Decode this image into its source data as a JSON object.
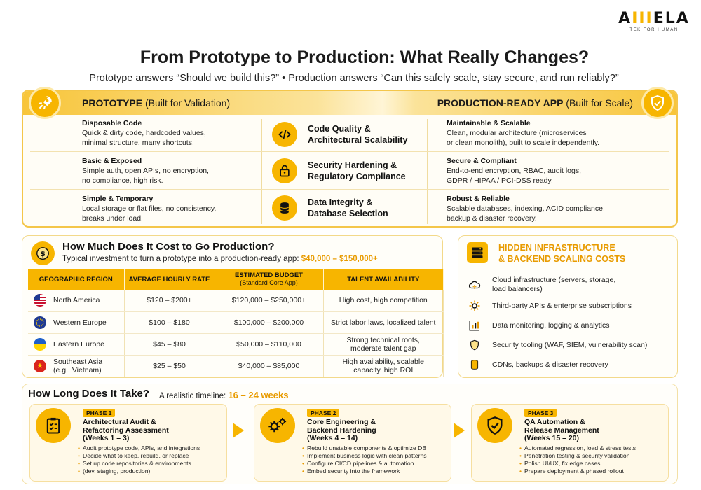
{
  "brand": {
    "logo_left": "A",
    "logo_mid": "III",
    "logo_right": "ELA",
    "tagline": "TEK FOR HUMAN"
  },
  "title": "From Prototype to Production: What Really Changes?",
  "subtitle": "Prototype answers “Should we build this?” • Production answers “Can this safely scale, stay secure, and run reliably?”",
  "compare": {
    "left_header": {
      "bold": "PROTOTYPE",
      "rest": " (Built for Validation)"
    },
    "right_header": {
      "bold": "PRODUCTION-READY APP",
      "rest": " (Built for Scale)"
    },
    "rows": [
      {
        "left_title": "Disposable Code",
        "left_desc_1": "Quick & dirty code, hardcoded values,",
        "left_desc_2": "minimal structure, many shortcuts.",
        "mid_1": "Code Quality &",
        "mid_2": "Architectural Scalability",
        "right_title": "Maintainable & Scalable",
        "right_desc_1": "Clean, modular architecture (microservices",
        "right_desc_2": "or clean monolith), built to scale independently."
      },
      {
        "left_title": "Basic & Exposed",
        "left_desc_1": "Simple auth, open APIs, no encryption,",
        "left_desc_2": "no compliance, high risk.",
        "mid_1": "Security Hardening &",
        "mid_2": "Regulatory Compliance",
        "right_title": "Secure & Compliant",
        "right_desc_1": "End-to-end encryption, RBAC, audit logs,",
        "right_desc_2": "GDPR / HIPAA / PCI-DSS ready."
      },
      {
        "left_title": "Simple & Temporary",
        "left_desc_1": "Local storage or flat files, no consistency,",
        "left_desc_2": "breaks under load.",
        "mid_1": "Data Integrity &",
        "mid_2": "Database Selection",
        "right_title": "Robust & Reliable",
        "right_desc_1": "Scalable databases, indexing, ACID compliance,",
        "right_desc_2": "backup & disaster recovery."
      }
    ]
  },
  "cost": {
    "title": "How Much Does It Cost to Go Production?",
    "sub_prefix": "Typical investment to turn a prototype into a production-ready app: ",
    "sub_highlight": "$40,000 – $150,000+",
    "headers": {
      "region": "GEOGRAPHIC REGION",
      "rate": "AVERAGE HOURLY RATE",
      "budget": "ESTIMATED BUDGET",
      "budget_sub": "(Standard Core App)",
      "talent": "TALENT AVAILABILITY"
    },
    "rows": [
      {
        "region": "North America",
        "region_2": "",
        "rate": "$120 – $200+",
        "budget": "$120,000 – $250,000+",
        "talent_1": "High cost, high competition",
        "talent_2": "",
        "talent_3": ""
      },
      {
        "region": "Western Europe",
        "region_2": "",
        "rate": "$100 – $180",
        "budget": "$100,000 – $200,000",
        "talent_1": "Strict labor laws, localized talent",
        "talent_2": "",
        "talent_3": ""
      },
      {
        "region": "Eastern Europe",
        "region_2": "",
        "rate": "$45 – $80",
        "budget": "$50,000 – $110,000",
        "talent_1": "Strong technical roots,",
        "talent_2": "moderate talent gap",
        "talent_3": ""
      },
      {
        "region": "Southeast Asia",
        "region_2": "(e.g., Vietnam)",
        "rate": "$25 – $50",
        "budget": "$40,000 – $85,000",
        "talent_1": "High availability, scalable",
        "talent_2": "capacity, high ROI",
        "talent_3": ""
      }
    ]
  },
  "infra": {
    "title_1": "HIDDEN INFRASTRUCTURE",
    "title_2": "& BACKEND SCALING COSTS",
    "items": [
      {
        "icon": "cloud-icon",
        "line_1": "Cloud infrastructure (servers, storage,",
        "line_2": "load balancers)"
      },
      {
        "icon": "gear-icon",
        "line_1": "Third-party APIs & enterprise subscriptions",
        "line_2": ""
      },
      {
        "icon": "chart-icon",
        "line_1": "Data monitoring, logging & analytics",
        "line_2": ""
      },
      {
        "icon": "shield-icon",
        "line_1": "Security tooling (WAF, SIEM, vulnerability scan)",
        "line_2": ""
      },
      {
        "icon": "database-icon",
        "line_1": "CDNs, backups & disaster recovery",
        "line_2": ""
      }
    ]
  },
  "timeline": {
    "title": "How Long Does It Take?",
    "sub_prefix": "A realistic timeline: ",
    "sub_highlight": "16 – 24 weeks",
    "phases": [
      {
        "tag": "PHASE 1",
        "name_1": "Architectural Audit &",
        "name_2": "Refactoring Assessment",
        "weeks": "(Weeks 1 – 3)",
        "items": [
          "Audit prototype code, APIs, and integrations",
          "Decide what to keep, rebuild, or replace",
          "Set up code repositories & environments",
          "(dev, staging, production)"
        ]
      },
      {
        "tag": "PHASE 2",
        "name_1": "Core Engineering &",
        "name_2": "Backend Hardening",
        "weeks": "(Weeks 4 – 14)",
        "items": [
          "Rebuild unstable components & optimize DB",
          "Implement business logic with clean patterns",
          "Configure CI/CD pipelines & automation",
          "Embed security into the framework"
        ]
      },
      {
        "tag": "PHASE 3",
        "name_1": "QA Automation &",
        "name_2": "Release Management",
        "weeks": "(Weeks 15 – 20)",
        "items": [
          "Automated regression, load & stress tests",
          "Penetration testing & security validation",
          "Polish UI/UX, fix edge cases",
          "Prepare deployment & phased rollout"
        ]
      }
    ]
  }
}
